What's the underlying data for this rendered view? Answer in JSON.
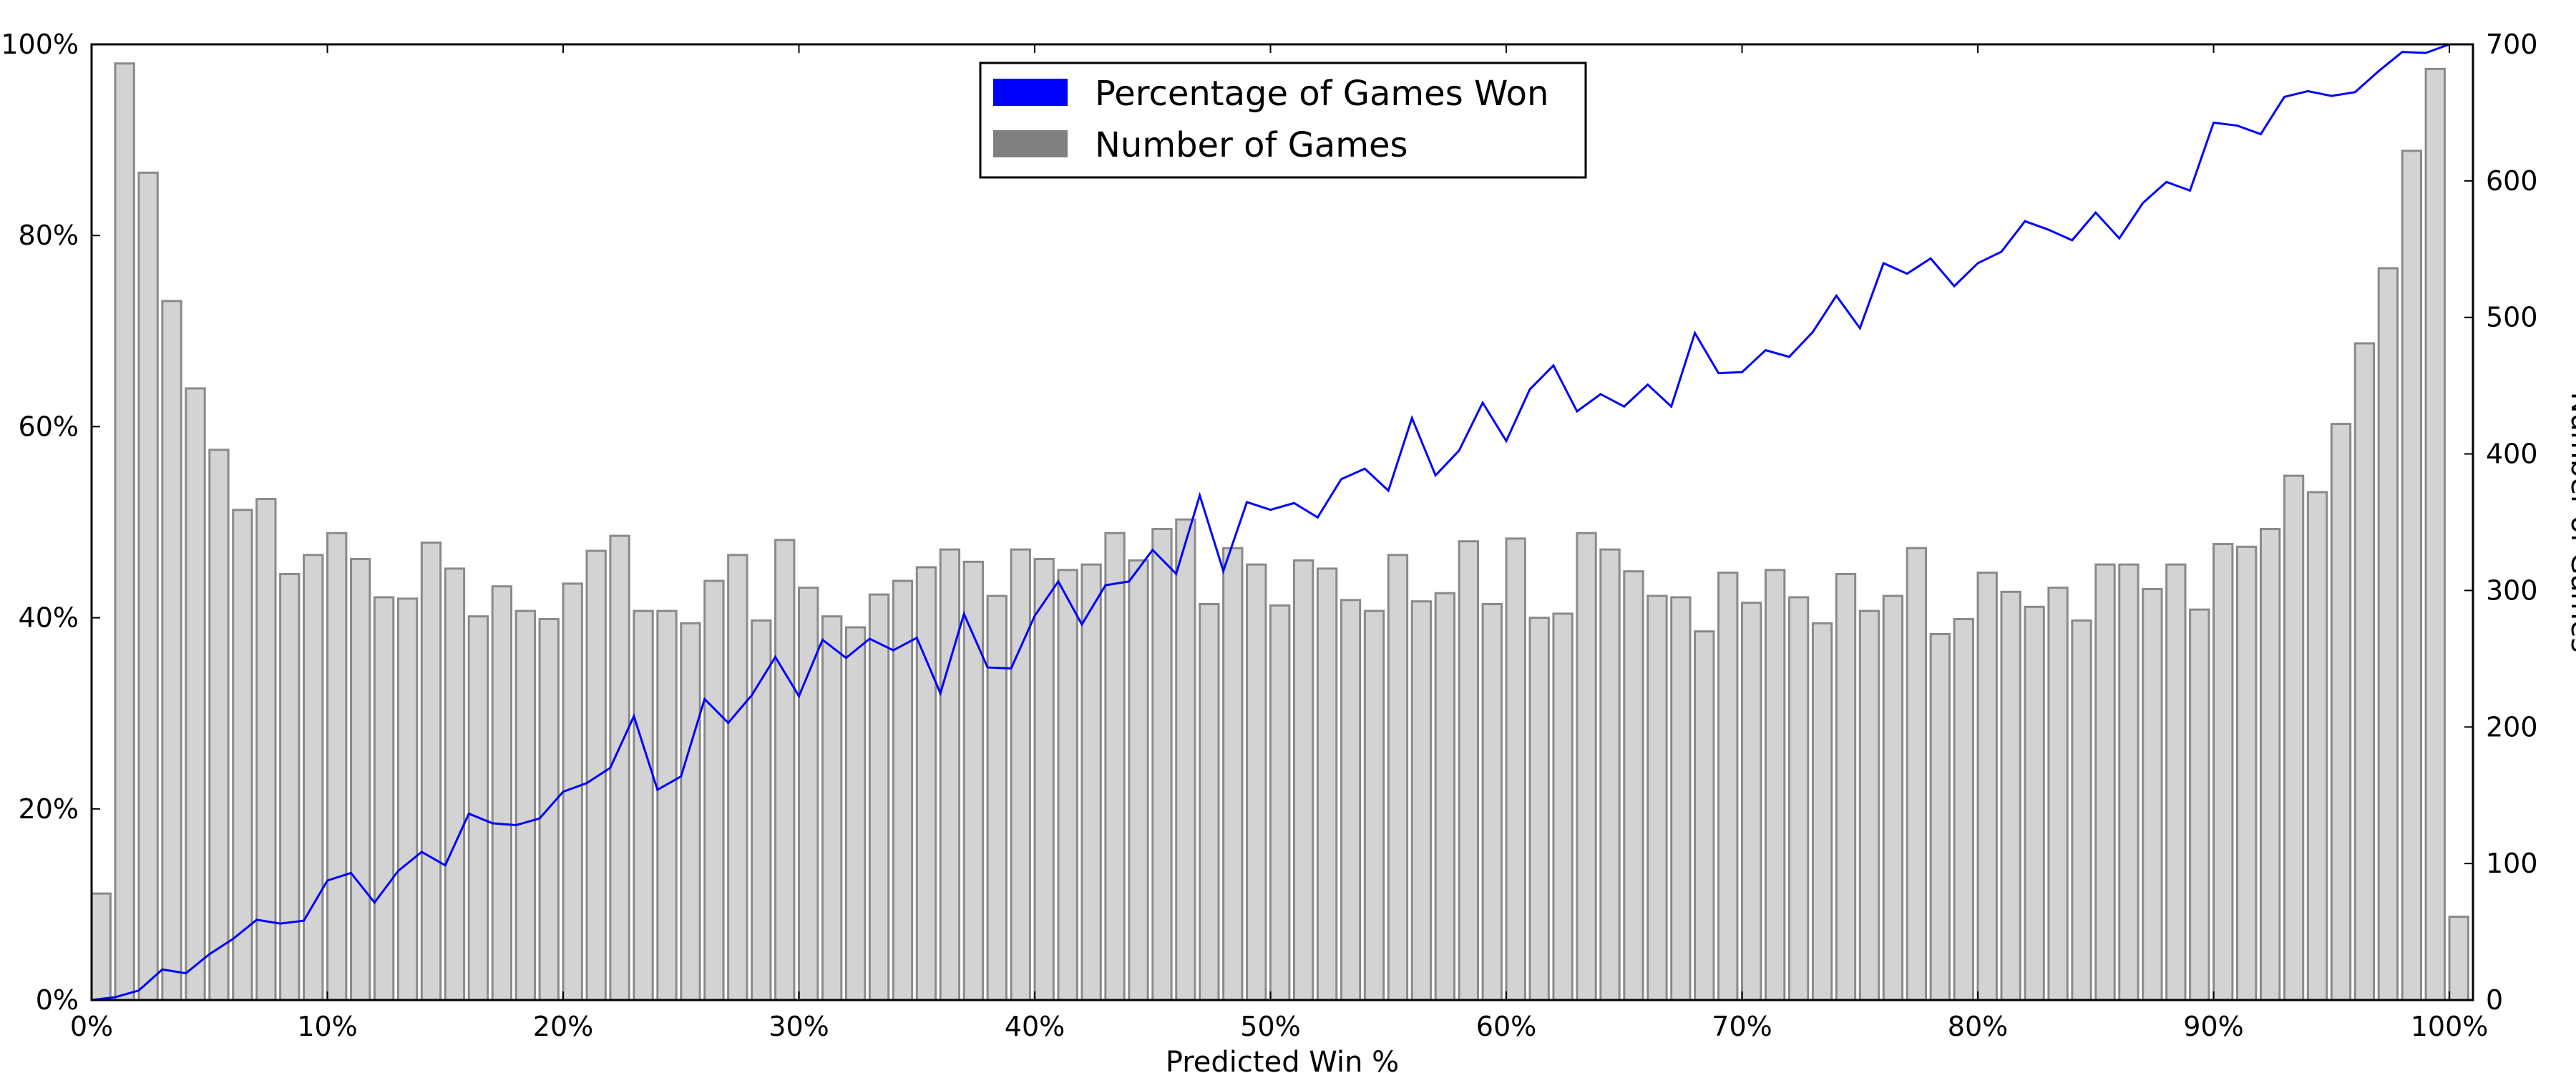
{
  "chart_data": {
    "type": "bar",
    "x_axis": {
      "label": "Predicted Win %",
      "ticks": [
        "0%",
        "10%",
        "20%",
        "30%",
        "40%",
        "50%",
        "60%",
        "70%",
        "80%",
        "90%",
        "100%"
      ],
      "range": [
        0,
        101
      ]
    },
    "y_left": {
      "ticks": [
        "0%",
        "20%",
        "40%",
        "60%",
        "80%",
        "100%"
      ],
      "range": [
        0,
        100
      ]
    },
    "y_right": {
      "label": "Number of Games",
      "ticks": [
        "0",
        "100",
        "200",
        "300",
        "400",
        "500",
        "600",
        "700"
      ],
      "range": [
        0,
        700
      ]
    },
    "legend": {
      "placement": "top-center",
      "entries": [
        {
          "label": "Percentage of Games Won",
          "color": "#0000ff"
        },
        {
          "label": "Number of Games",
          "color": "#808080"
        }
      ]
    },
    "x": [
      0,
      1,
      2,
      3,
      4,
      5,
      6,
      7,
      8,
      9,
      10,
      11,
      12,
      13,
      14,
      15,
      16,
      17,
      18,
      19,
      20,
      21,
      22,
      23,
      24,
      25,
      26,
      27,
      28,
      29,
      30,
      31,
      32,
      33,
      34,
      35,
      36,
      37,
      38,
      39,
      40,
      41,
      42,
      43,
      44,
      45,
      46,
      47,
      48,
      49,
      50,
      51,
      52,
      53,
      54,
      55,
      56,
      57,
      58,
      59,
      60,
      61,
      62,
      63,
      64,
      65,
      66,
      67,
      68,
      69,
      70,
      71,
      72,
      73,
      74,
      75,
      76,
      77,
      78,
      79,
      80,
      81,
      82,
      83,
      84,
      85,
      86,
      87,
      88,
      89,
      90,
      91,
      92,
      93,
      94,
      95,
      96,
      97,
      98,
      99,
      100
    ],
    "series": [
      {
        "name": "Number of Games",
        "axis": "right",
        "kind": "bar",
        "color": "#d3d3d3",
        "values": [
          78,
          686,
          606,
          512,
          448,
          403,
          359,
          367,
          312,
          326,
          342,
          323,
          295,
          294,
          335,
          316,
          281,
          303,
          285,
          279,
          305,
          329,
          340,
          285,
          285,
          276,
          307,
          326,
          278,
          337,
          302,
          281,
          273,
          297,
          307,
          317,
          330,
          321,
          296,
          330,
          323,
          315,
          319,
          342,
          322,
          345,
          352,
          290,
          331,
          319,
          289,
          322,
          316,
          293,
          285,
          326,
          292,
          298,
          336,
          290,
          338,
          280,
          283,
          342,
          330,
          314,
          296,
          295,
          270,
          313,
          291,
          315,
          295,
          276,
          312,
          285,
          296,
          331,
          268,
          279,
          313,
          299,
          288,
          302,
          278,
          319,
          319,
          301,
          319,
          286,
          334,
          332,
          345,
          384,
          372,
          422,
          481,
          536,
          622,
          682,
          61
        ]
      },
      {
        "name": "Percentage of Games Won",
        "axis": "left",
        "kind": "line",
        "color": "#0000ff",
        "values": [
          0.0,
          0.3,
          1.0,
          3.2,
          2.8,
          4.8,
          6.4,
          8.4,
          8.0,
          8.3,
          12.5,
          13.3,
          10.2,
          13.5,
          15.5,
          14.1,
          19.5,
          18.5,
          18.3,
          19.0,
          21.8,
          22.7,
          24.3,
          29.7,
          22.0,
          23.4,
          31.5,
          29.0,
          31.9,
          35.9,
          31.8,
          37.7,
          35.8,
          37.8,
          36.6,
          37.9,
          32.1,
          40.4,
          34.8,
          34.7,
          40.2,
          43.8,
          39.3,
          43.4,
          43.8,
          47.1,
          44.6,
          52.8,
          44.9,
          52.1,
          51.3,
          52.0,
          50.5,
          54.5,
          55.6,
          53.3,
          60.9,
          54.9,
          57.5,
          62.5,
          58.5,
          63.9,
          66.4,
          61.6,
          63.4,
          62.1,
          64.4,
          62.1,
          69.8,
          65.6,
          65.7,
          68.0,
          67.3,
          69.9,
          73.7,
          70.3,
          77.1,
          76.0,
          77.6,
          74.7,
          77.1,
          78.3,
          81.5,
          80.6,
          79.5,
          82.4,
          79.7,
          83.4,
          85.6,
          84.7,
          91.8,
          91.5,
          90.6,
          94.5,
          95.1,
          94.6,
          95.0,
          97.2,
          99.2,
          99.1,
          100.0
        ]
      }
    ]
  }
}
